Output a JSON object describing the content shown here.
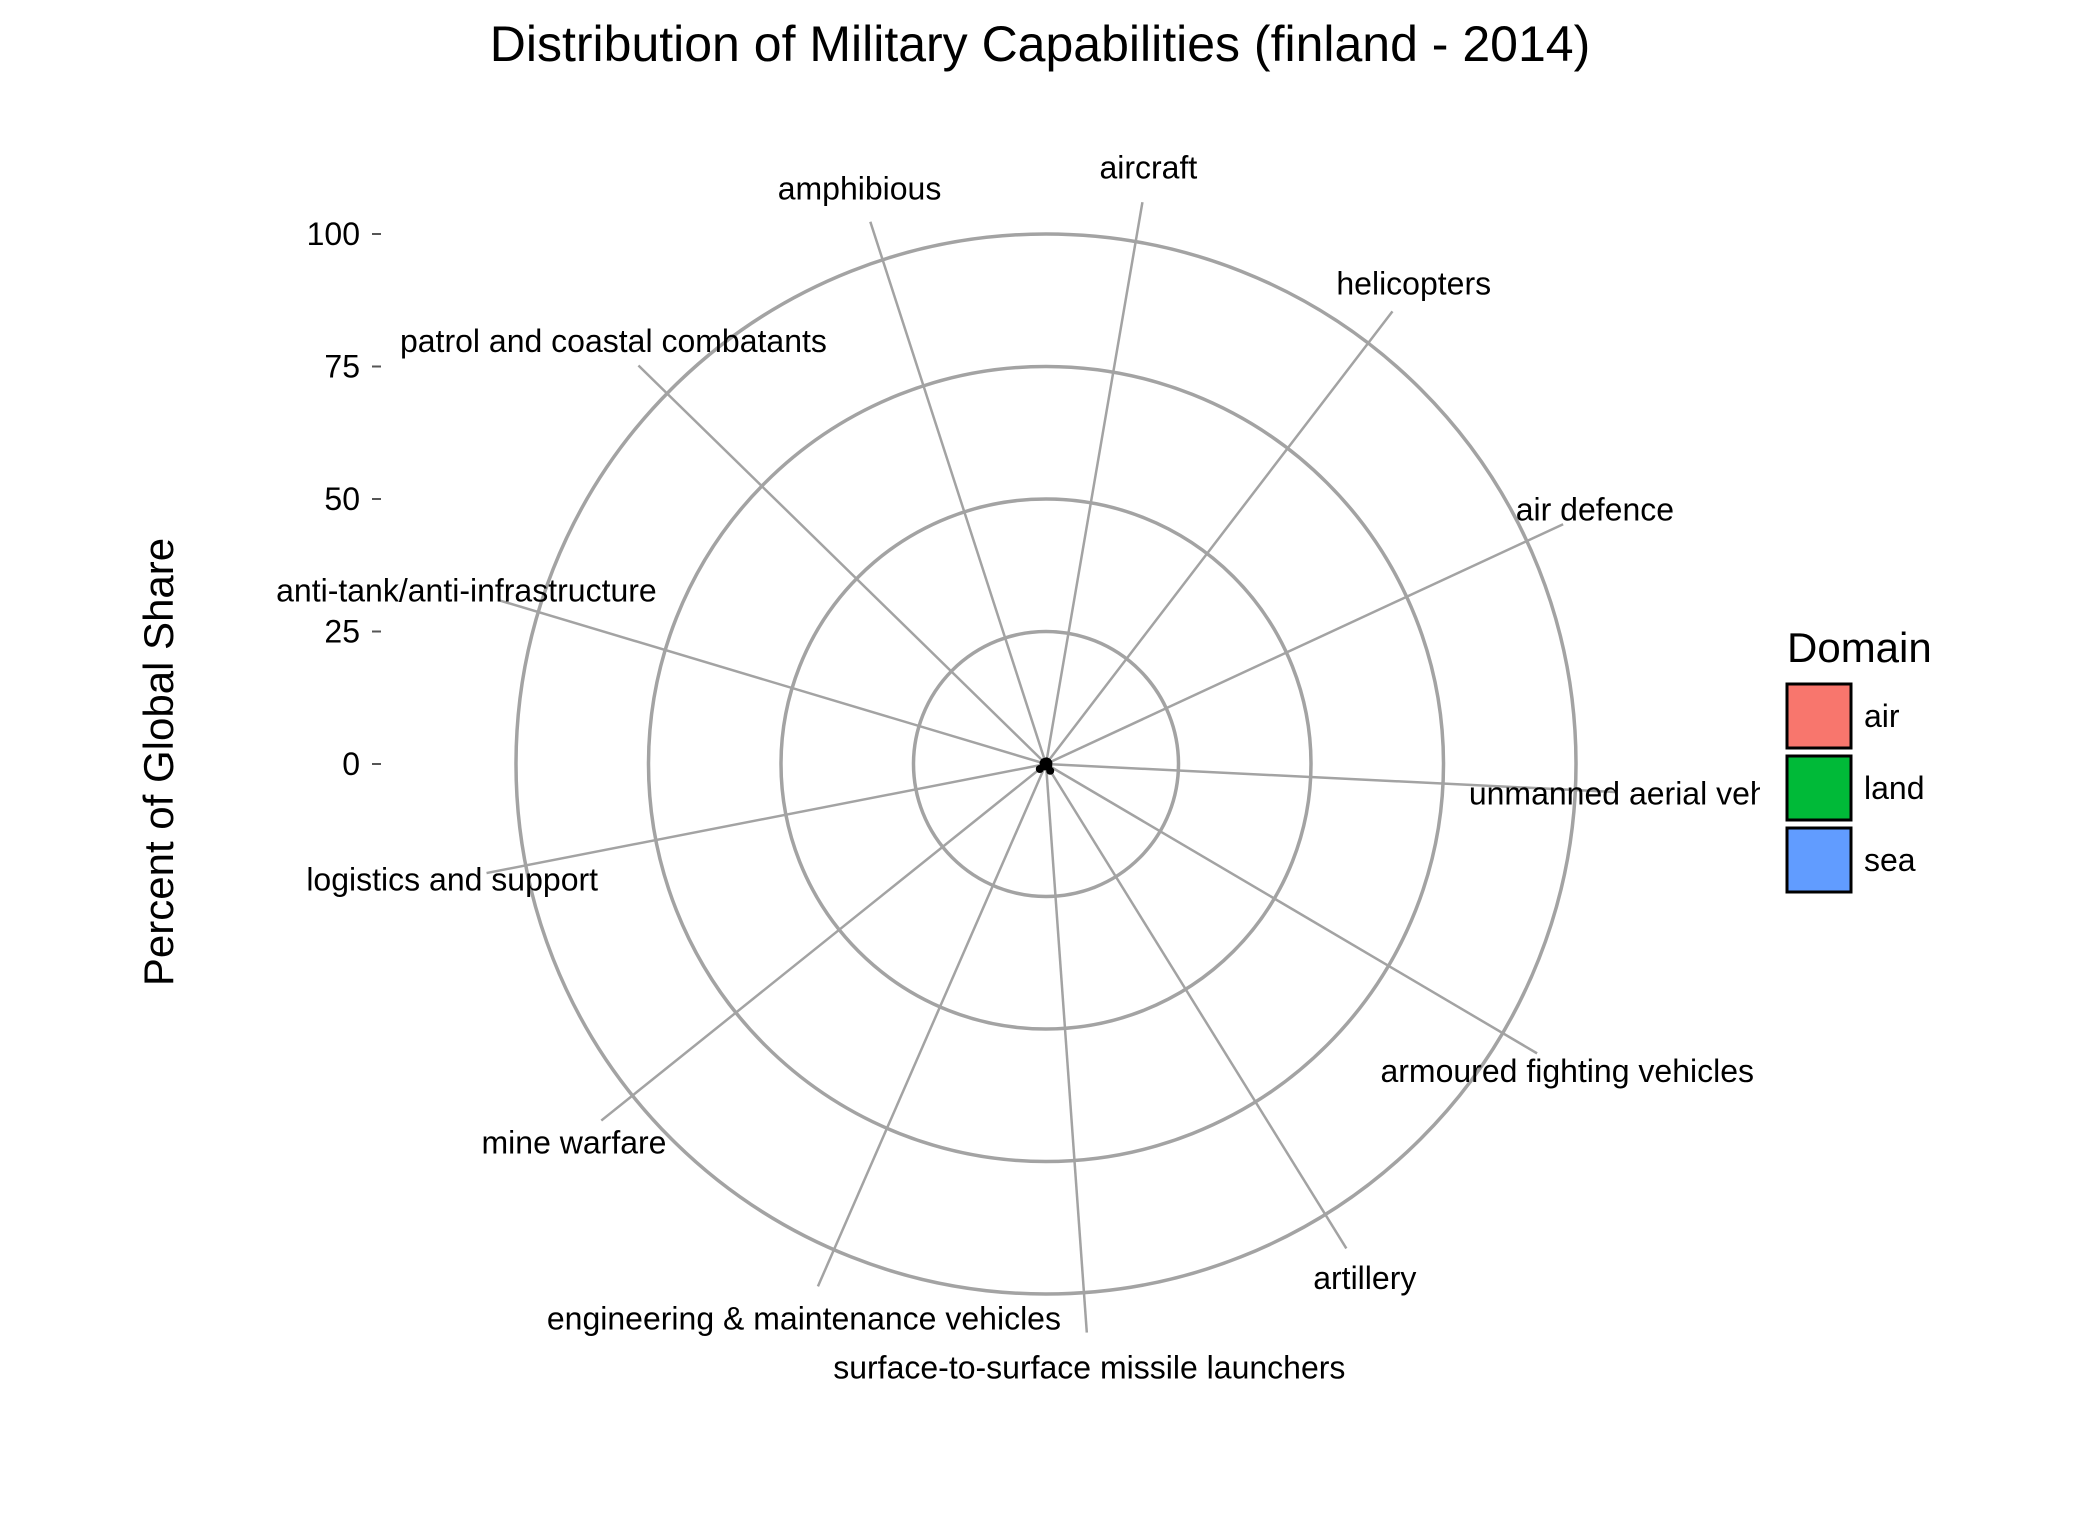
{
  "chart_data": {
    "type": "radar",
    "title": "Distribution of Military Capabilities (finland - 2014)",
    "ylabel": "Percent of Global Share",
    "xlabel": "",
    "ylim": [
      0,
      100
    ],
    "yticks": [
      100,
      75,
      50,
      25,
      0
    ],
    "categories": [
      "aircraft",
      "helicopters",
      "air defence",
      "unmanned aerial vehicles",
      "armoured fighting vehicles",
      "artillery",
      "surface-to-surface missile launchers",
      "engineering & maintenance vehicles",
      "mine warfare",
      "logistics and support",
      "anti-tank/anti-infrastructure",
      "patrol and coastal combatants",
      "amphibious"
    ],
    "values": [
      0.5,
      0.5,
      0.5,
      0,
      0.5,
      1.5,
      0,
      0.5,
      1.5,
      0,
      0.5,
      0.5,
      0
    ],
    "legend": {
      "title": "Domain",
      "position": "right",
      "items": [
        {
          "label": "air",
          "color": "#F8766D"
        },
        {
          "label": "land",
          "color": "#00BA38"
        },
        {
          "label": "sea",
          "color": "#619CFF"
        }
      ]
    },
    "grid": true
  }
}
